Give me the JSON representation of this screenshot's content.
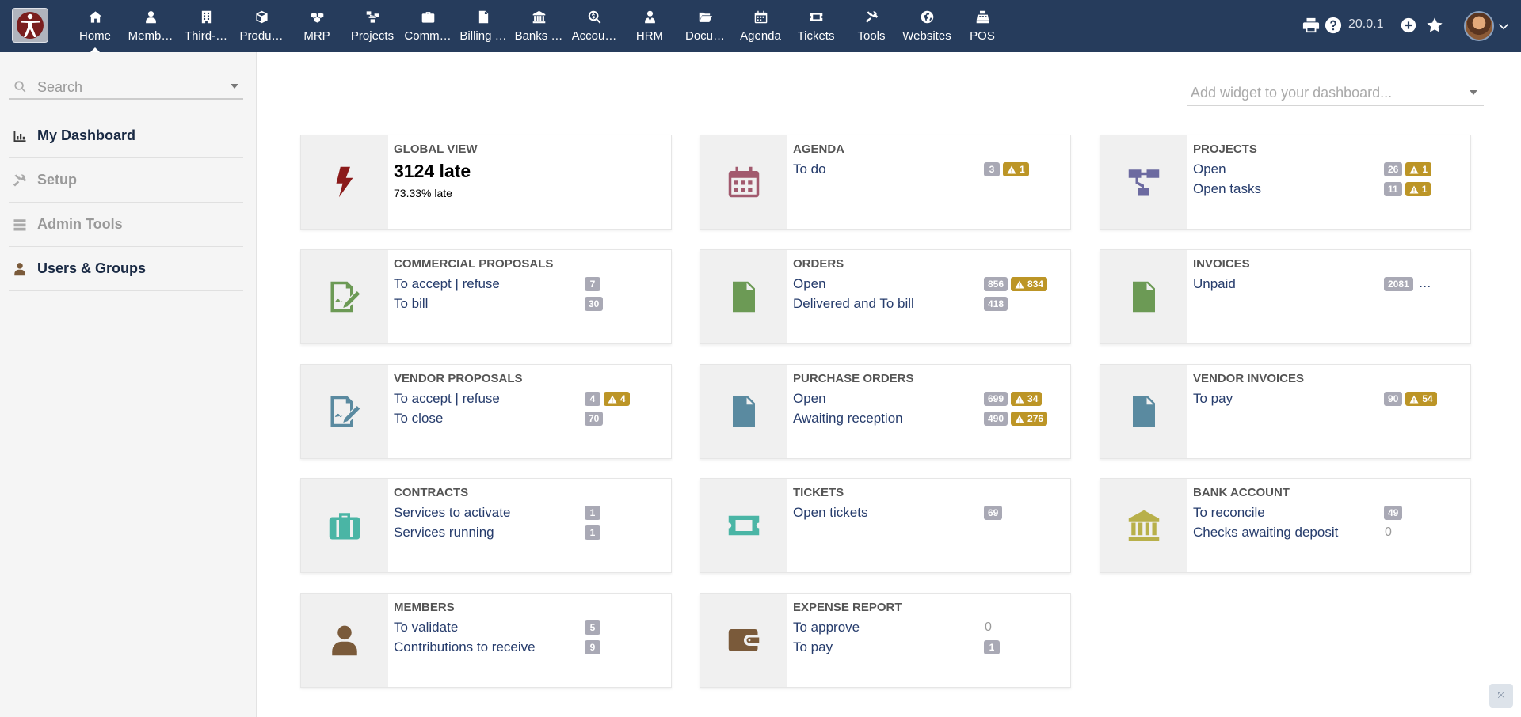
{
  "topbar": {
    "menu": [
      {
        "label": "Home",
        "icon": "home-icon"
      },
      {
        "label": "Members",
        "icon": "user-icon"
      },
      {
        "label": "Third-parties",
        "icon": "building-icon"
      },
      {
        "label": "Products",
        "icon": "cube-icon"
      },
      {
        "label": "MRP",
        "icon": "cubes-icon"
      },
      {
        "label": "Projects",
        "icon": "sitemap-icon"
      },
      {
        "label": "Commerce",
        "icon": "suitcase-icon"
      },
      {
        "label": "Billing & Payment",
        "icon": "file-invoice-icon"
      },
      {
        "label": "Banks & Cash",
        "icon": "bank-icon"
      },
      {
        "label": "Accounting",
        "icon": "search-dollar-icon"
      },
      {
        "label": "HRM",
        "icon": "user-tie-icon"
      },
      {
        "label": "Documents",
        "icon": "folder-open-icon"
      },
      {
        "label": "Agenda",
        "icon": "calendar-icon"
      },
      {
        "label": "Tickets",
        "icon": "ticket-icon"
      },
      {
        "label": "Tools",
        "icon": "tools-icon"
      },
      {
        "label": "Websites",
        "icon": "globe-icon"
      },
      {
        "label": "POS",
        "icon": "cash-register-icon"
      }
    ],
    "menu_display": [
      "Home",
      "Memb…",
      "Third-…",
      "Produ…",
      "MRP",
      "Projects",
      "Comm…",
      "Billing …",
      "Banks …",
      "Accou…",
      "HRM",
      "Docu…",
      "Agenda",
      "Tickets",
      "Tools",
      "Websites",
      "POS"
    ],
    "version": "20.0.1"
  },
  "sidebar": {
    "search_placeholder": "Search",
    "items": [
      {
        "label": "My Dashboard",
        "icon": "chart-bar-icon"
      },
      {
        "label": "Setup",
        "icon": "tools-icon"
      },
      {
        "label": "Admin Tools",
        "icon": "server-icon"
      },
      {
        "label": "Users & Groups",
        "icon": "user-icon"
      }
    ]
  },
  "main": {
    "widget_placeholder": "Add widget to your dashboard...",
    "global_view": {
      "title": "GLOBAL VIEW",
      "big": "3124 late",
      "sub": "73.33% late"
    },
    "cards": [
      {
        "title": "AGENDA",
        "rows": [
          {
            "label": "To do",
            "count": "3",
            "warn": "1"
          }
        ]
      },
      {
        "title": "PROJECTS",
        "rows": [
          {
            "label": "Open",
            "count": "26",
            "warn": "1"
          },
          {
            "label": "Open tasks",
            "count": "11",
            "warn": "1"
          }
        ]
      },
      {
        "title": "COMMERCIAL PROPOSALS",
        "rows": [
          {
            "label": "To accept | refuse",
            "count": "7"
          },
          {
            "label": "To bill",
            "count": "30"
          }
        ]
      },
      {
        "title": "ORDERS",
        "rows": [
          {
            "label": "Open",
            "count": "856",
            "warn": "834"
          },
          {
            "label": "Delivered and To bill",
            "count": "418"
          }
        ]
      },
      {
        "title": "INVOICES",
        "rows": [
          {
            "label": "Unpaid",
            "count": "2081",
            "extra": "…"
          }
        ]
      },
      {
        "title": "VENDOR PROPOSALS",
        "rows": [
          {
            "label": "To accept | refuse",
            "count": "4",
            "warn": "4"
          },
          {
            "label": "To close",
            "count": "70"
          }
        ]
      },
      {
        "title": "PURCHASE ORDERS",
        "rows": [
          {
            "label": "Open",
            "count": "699",
            "warn": "34"
          },
          {
            "label": "Awaiting reception",
            "count": "490",
            "warn": "276"
          }
        ]
      },
      {
        "title": "VENDOR INVOICES",
        "rows": [
          {
            "label": "To pay",
            "count": "90",
            "warn": "54"
          }
        ]
      },
      {
        "title": "CONTRACTS",
        "rows": [
          {
            "label": "Services to activate",
            "count": "1"
          },
          {
            "label": "Services running",
            "count": "1"
          }
        ]
      },
      {
        "title": "TICKETS",
        "rows": [
          {
            "label": "Open tickets",
            "count": "69"
          }
        ]
      },
      {
        "title": "BANK ACCOUNT",
        "rows": [
          {
            "label": "To reconcile",
            "count": "49"
          },
          {
            "label": "Checks awaiting deposit",
            "zero": "0"
          }
        ]
      },
      {
        "title": "MEMBERS",
        "rows": [
          {
            "label": "To validate",
            "count": "5"
          },
          {
            "label": "Contributions to receive",
            "count": "9"
          }
        ]
      },
      {
        "title": "EXPENSE REPORT",
        "rows": [
          {
            "label": "To approve",
            "zero": "0"
          },
          {
            "label": "To pay",
            "count": "1"
          }
        ]
      }
    ]
  },
  "colors": {
    "topbar": "#263c5c",
    "warn_badge": "#bc9526",
    "count_badge": "#a9a9b5",
    "global_icon": "#8b1a1a",
    "agenda_icon": "#a25a6e",
    "projects_icon": "#6c6aa0",
    "commercial_icon": "#6c9a55",
    "vendor_icon": "#5a8aa0",
    "contracts_icon": "#4ab5a5",
    "bank_icon": "#b8b04a",
    "members_icon": "#7a5a3a"
  }
}
